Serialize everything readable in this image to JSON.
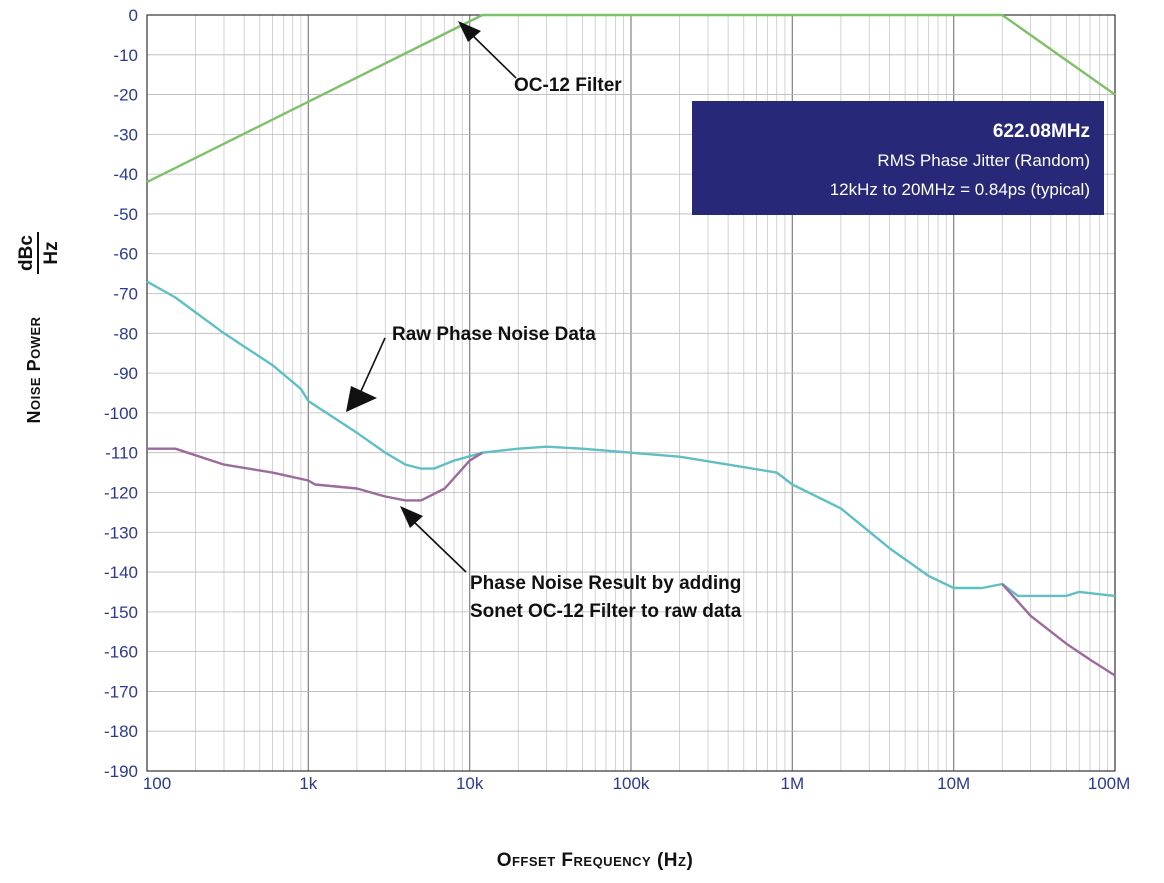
{
  "chart_data": {
    "type": "line",
    "x_scale": "log",
    "xlim": [
      100,
      100000000
    ],
    "ylim": [
      -190,
      0
    ],
    "grid": true,
    "xlabel": "Offset Frequency (Hz)",
    "ylabel": "Noise Power",
    "ylabel_unit_numerator": "dBc",
    "ylabel_unit_denominator": "Hz",
    "x_tick_values": [
      100,
      1000,
      10000,
      100000,
      1000000,
      10000000,
      100000000
    ],
    "x_tick_labels": [
      "100",
      "1k",
      "10k",
      "100k",
      "1M",
      "10M",
      "100M"
    ],
    "y_tick_values": [
      0,
      -10,
      -20,
      -30,
      -40,
      -50,
      -60,
      -70,
      -80,
      -90,
      -100,
      -110,
      -120,
      -130,
      -140,
      -150,
      -160,
      -170,
      -180,
      -190
    ],
    "y_tick_labels": [
      "0",
      "-10",
      "-20",
      "-30",
      "-40",
      "-50",
      "-60",
      "-70",
      "-80",
      "-90",
      "-100",
      "-110",
      "-120",
      "-130",
      "-140",
      "-150",
      "-160",
      "-170",
      "-180",
      "-190"
    ],
    "series": [
      {
        "id": "filter",
        "color": "#7fc06a",
        "points": [
          [
            100,
            -42
          ],
          [
            12000,
            0
          ],
          [
            20000000,
            0
          ],
          [
            100000000,
            -20
          ]
        ]
      },
      {
        "id": "raw",
        "color": "#5fbfc4",
        "points": [
          [
            100,
            -67
          ],
          [
            150,
            -71
          ],
          [
            300,
            -80
          ],
          [
            600,
            -88
          ],
          [
            900,
            -94
          ],
          [
            1000,
            -97
          ],
          [
            2000,
            -105
          ],
          [
            3000,
            -110
          ],
          [
            4000,
            -113
          ],
          [
            5000,
            -114
          ],
          [
            6000,
            -114
          ],
          [
            8000,
            -112
          ],
          [
            12000,
            -110
          ],
          [
            20000,
            -109
          ],
          [
            30000,
            -108.5
          ],
          [
            50000,
            -109
          ],
          [
            100000,
            -110
          ],
          [
            200000,
            -111
          ],
          [
            400000,
            -113
          ],
          [
            800000,
            -115
          ],
          [
            1000000,
            -118
          ],
          [
            2000000,
            -124
          ],
          [
            4000000,
            -134
          ],
          [
            7000000,
            -141
          ],
          [
            10000000,
            -144
          ],
          [
            15000000,
            -144
          ],
          [
            20000000,
            -143
          ],
          [
            25000000,
            -146
          ],
          [
            50000000,
            -146
          ],
          [
            60000000,
            -145
          ],
          [
            100000000,
            -146
          ]
        ]
      },
      {
        "id": "filtered",
        "color": "#9a6b9c",
        "points": [
          [
            100,
            -109
          ],
          [
            150,
            -109
          ],
          [
            300,
            -113
          ],
          [
            600,
            -115
          ],
          [
            1000,
            -117
          ],
          [
            1100,
            -118
          ],
          [
            2000,
            -119
          ],
          [
            3000,
            -121
          ],
          [
            4000,
            -122
          ],
          [
            5000,
            -122
          ],
          [
            7000,
            -119
          ],
          [
            10000,
            -112
          ],
          [
            12000,
            -110
          ]
        ],
        "overlay": [
          [
            20000000,
            -143
          ],
          [
            30000000,
            -151
          ],
          [
            50000000,
            -158
          ],
          [
            70000000,
            -162
          ],
          [
            100000000,
            -166
          ]
        ]
      }
    ],
    "annotations": {
      "filter": "OC-12 Filter",
      "raw": "Raw Phase Noise Data",
      "filtered_line1": "Phase Noise Result by adding",
      "filtered_line2": "Sonet OC-12 Filter to raw data"
    },
    "info_box": {
      "title": "622.08MHz",
      "line1": "RMS Phase Jitter  (Random)",
      "line2": "12kHz to 20MHz = 0.84ps (typical)",
      "background": "#282878"
    }
  }
}
